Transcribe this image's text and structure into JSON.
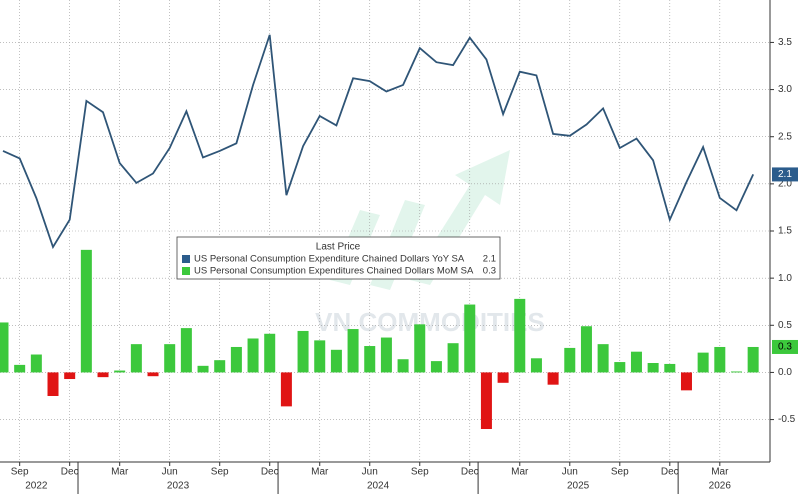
{
  "chart_data": {
    "type": "bar_line",
    "categories": [
      null,
      "Sep",
      null,
      null,
      "Dec",
      null,
      null,
      "Mar",
      null,
      null,
      "Jun",
      null,
      null,
      "Sep",
      null,
      null,
      "Dec",
      null,
      null,
      "Mar",
      null,
      null,
      "Jun",
      null,
      null,
      "Sep",
      null,
      null,
      "Dec",
      null,
      null,
      "Mar",
      null,
      null,
      "Jun",
      null,
      null,
      "Sep",
      null,
      null,
      "Dec",
      null,
      null,
      "Mar",
      null,
      null
    ],
    "years": [
      "2022",
      "2023",
      "2024",
      "2025",
      "2026"
    ],
    "legend_title": "Last Price",
    "watermark": "VN COMMODITIES",
    "series": [
      {
        "name": "US Personal Consumption Expenditure Chained Dollars YoY SA",
        "type": "line",
        "color": "#2f5577",
        "badge_color": "#2b5c8c",
        "last_value_label": "2.1",
        "values": [
          2.35,
          2.27,
          1.85,
          1.33,
          1.62,
          2.88,
          2.76,
          2.22,
          2.01,
          2.11,
          2.38,
          2.77,
          2.28,
          2.35,
          2.43,
          3.05,
          3.58,
          1.88,
          2.4,
          2.72,
          2.62,
          3.12,
          3.09,
          2.98,
          3.05,
          3.44,
          3.29,
          3.26,
          3.55,
          3.32,
          2.74,
          3.19,
          3.15,
          2.53,
          2.51,
          2.63,
          2.8,
          2.38,
          2.48,
          2.25,
          1.62,
          2.02,
          2.39,
          1.85,
          1.72,
          2.1
        ]
      },
      {
        "name": "US Personal Consumption Expenditures Chained Dollars MoM SA",
        "type": "bar",
        "color": "#3cc83c",
        "negative_color": "#e01414",
        "badge_color": "#3cc83c",
        "last_value_label": "0.3",
        "values": [
          0.53,
          0.08,
          0.19,
          -0.25,
          -0.07,
          1.3,
          -0.05,
          0.02,
          0.3,
          -0.04,
          0.3,
          0.47,
          0.07,
          0.13,
          0.27,
          0.36,
          0.41,
          -0.36,
          0.44,
          0.34,
          0.24,
          0.46,
          0.28,
          0.37,
          0.14,
          0.51,
          0.12,
          0.31,
          0.72,
          -0.6,
          -0.11,
          0.78,
          0.15,
          -0.13,
          0.26,
          0.49,
          0.3,
          0.11,
          0.22,
          0.1,
          0.09,
          -0.19,
          0.21,
          0.27,
          0.01,
          0.27
        ]
      }
    ],
    "ylim": [
      -0.95,
      3.95
    ],
    "yticks": [
      -0.5,
      {
        "value": 0,
        "label": "0.0"
      },
      0.5,
      {
        "value": 1,
        "label": "1.0"
      },
      1.5,
      {
        "value": 2,
        "label": "2.0"
      },
      2.5,
      {
        "value": 3,
        "label": "3.0"
      },
      3.5
    ],
    "grid": true
  }
}
